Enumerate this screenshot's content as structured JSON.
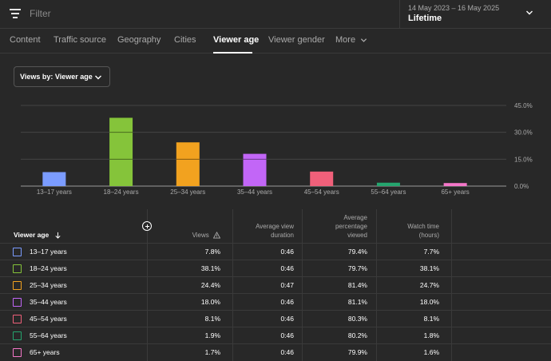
{
  "filter": {
    "placeholder": "Filter"
  },
  "date": {
    "range": "14 May 2023 – 16 May 2025",
    "period": "Lifetime"
  },
  "tabs": [
    {
      "label": "Content"
    },
    {
      "label": "Traffic source"
    },
    {
      "label": "Geography"
    },
    {
      "label": "Cities"
    },
    {
      "label": "Viewer age",
      "active": true
    },
    {
      "label": "Viewer gender"
    },
    {
      "label": "More"
    }
  ],
  "views_by": {
    "label": "Views by: Viewer age"
  },
  "chart_data": {
    "type": "bar",
    "categories": [
      "13–17 years",
      "18–24 years",
      "25–34 years",
      "35–44 years",
      "45–54 years",
      "55–64 years",
      "65+ years"
    ],
    "values": [
      7.8,
      38.1,
      24.4,
      18.0,
      8.1,
      1.9,
      1.7
    ],
    "colors": [
      "#7b9cff",
      "#85c43a",
      "#f2a21f",
      "#c266f7",
      "#f0607a",
      "#25a56e",
      "#f577c9"
    ],
    "ylim": [
      0,
      45
    ],
    "yticks": [
      "45.0%",
      "30.0%",
      "15.0%",
      "0.0%"
    ],
    "ytick_values": [
      45,
      30,
      15,
      0
    ],
    "grid": true
  },
  "table": {
    "headers": {
      "age": "Viewer age",
      "views": "Views",
      "avd": [
        "Average view",
        "duration"
      ],
      "avp": [
        "Average",
        "percentage",
        "viewed"
      ],
      "wt": [
        "Watch time",
        "(hours)"
      ]
    },
    "rows": [
      {
        "age": "13–17 years",
        "color": "#7b9cff",
        "views": "7.8%",
        "avd": "0:46",
        "avp": "79.4%",
        "wt": "7.7%"
      },
      {
        "age": "18–24 years",
        "color": "#85c43a",
        "views": "38.1%",
        "avd": "0:46",
        "avp": "79.7%",
        "wt": "38.1%"
      },
      {
        "age": "25–34 years",
        "color": "#f2a21f",
        "views": "24.4%",
        "avd": "0:47",
        "avp": "81.4%",
        "wt": "24.7%"
      },
      {
        "age": "35–44 years",
        "color": "#c266f7",
        "views": "18.0%",
        "avd": "0:46",
        "avp": "81.1%",
        "wt": "18.0%"
      },
      {
        "age": "45–54 years",
        "color": "#f0607a",
        "views": "8.1%",
        "avd": "0:46",
        "avp": "80.3%",
        "wt": "8.1%"
      },
      {
        "age": "55–64 years",
        "color": "#25a56e",
        "views": "1.9%",
        "avd": "0:46",
        "avp": "80.2%",
        "wt": "1.8%"
      },
      {
        "age": "65+ years",
        "color": "#f577c9",
        "views": "1.7%",
        "avd": "0:46",
        "avp": "79.9%",
        "wt": "1.6%"
      }
    ]
  }
}
